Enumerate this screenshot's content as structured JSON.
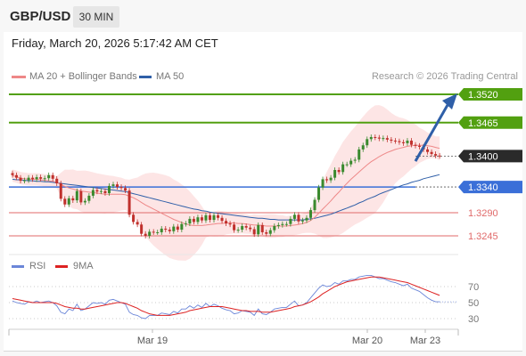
{
  "header": {
    "symbol": "GBP/USD",
    "timeframe": "30 MIN"
  },
  "timestamp": "Friday, March 20, 2026 5:17:42 AM CET",
  "legend": {
    "ma20": "MA 20 + Bollinger Bands",
    "ma50": "MA 50",
    "rsi": "RSI",
    "ma9": "9MA"
  },
  "credit": "Research © 2026 Trading Central",
  "colors": {
    "ma20": "#ee8888",
    "ma50": "#2f5fa8",
    "bollinger_fill": "#fde0e0",
    "resistance": "#52a010",
    "pivot": "#3a6fd8",
    "support": "#e06a6a",
    "last_price": "#2a2a2a",
    "candle_up": "#3a8a2e",
    "candle_down": "#c0302c",
    "rsi": "#6b86d8",
    "rsi_ma": "#dd2222"
  },
  "chart_data": [
    {
      "type": "candlestick",
      "symbol": "GBP/USD",
      "interval": "30 MIN",
      "x_ticks": [
        "Mar 19",
        "Mar 20",
        "Mar 23"
      ],
      "levels": [
        {
          "value": 1.352,
          "label": "1.3520",
          "kind": "resistance"
        },
        {
          "value": 1.3465,
          "label": "1.3465",
          "kind": "resistance"
        },
        {
          "value": 1.34,
          "label": "1.3400",
          "kind": "last"
        },
        {
          "value": 1.334,
          "label": "1.3340",
          "kind": "pivot"
        },
        {
          "value": 1.329,
          "label": "1.3290",
          "kind": "support"
        },
        {
          "value": 1.3245,
          "label": "1.3245",
          "kind": "support"
        }
      ],
      "projection": {
        "from": 1.339,
        "to": 1.352,
        "direction": "up"
      },
      "close": [
        1.3363,
        1.3358,
        1.3352,
        1.3353,
        1.3358,
        1.3355,
        1.3359,
        1.3356,
        1.3357,
        1.3363,
        1.3356,
        1.3347,
        1.3317,
        1.3306,
        1.3318,
        1.3314,
        1.3332,
        1.331,
        1.3313,
        1.3323,
        1.3334,
        1.3331,
        1.3332,
        1.3328,
        1.3342,
        1.3345,
        1.334,
        1.3338,
        1.3333,
        1.3286,
        1.3272,
        1.3267,
        1.3249,
        1.3245,
        1.3253,
        1.3252,
        1.3252,
        1.3259,
        1.3257,
        1.3254,
        1.3263,
        1.3257,
        1.3268,
        1.3269,
        1.3278,
        1.3272,
        1.3281,
        1.3275,
        1.3285,
        1.3276,
        1.3285,
        1.328,
        1.3274,
        1.3269,
        1.3267,
        1.3256,
        1.3257,
        1.3264,
        1.3261,
        1.3258,
        1.3248,
        1.3266,
        1.3252,
        1.3249,
        1.3256,
        1.3264,
        1.3266,
        1.3268,
        1.3268,
        1.3278,
        1.3286,
        1.3273,
        1.3275,
        1.328,
        1.3295,
        1.3315,
        1.3339,
        1.3355,
        1.3353,
        1.3358,
        1.3373,
        1.3369,
        1.3384,
        1.3384,
        1.3391,
        1.3393,
        1.3413,
        1.3421,
        1.3433,
        1.3437,
        1.3436,
        1.3434,
        1.3435,
        1.3432,
        1.343,
        1.3429,
        1.3427,
        1.3425,
        1.343,
        1.3422,
        1.342,
        1.3418,
        1.3413,
        1.3408,
        1.3404,
        1.3401,
        1.34
      ],
      "ma20": [
        1.3362,
        1.336,
        1.3357,
        1.3356,
        1.3355,
        1.3355,
        1.3355,
        1.3354,
        1.3353,
        1.3352,
        1.3351,
        1.3349,
        1.3345,
        1.3341,
        1.3338,
        1.3336,
        1.3334,
        1.3332,
        1.3331,
        1.333,
        1.3329,
        1.3328,
        1.3327,
        1.3326,
        1.3326,
        1.3326,
        1.3326,
        1.3326,
        1.3325,
        1.3322,
        1.3319,
        1.3315,
        1.331,
        1.3305,
        1.3301,
        1.3297,
        1.3293,
        1.3289,
        1.3285,
        1.3281,
        1.3277,
        1.3274,
        1.3271,
        1.3268,
        1.3266,
        1.3265,
        1.3265,
        1.3265,
        1.3266,
        1.3267,
        1.3268,
        1.3269,
        1.3269,
        1.327,
        1.327,
        1.327,
        1.3269,
        1.3269,
        1.3268,
        1.3267,
        1.3266,
        1.3266,
        1.3265,
        1.3264,
        1.3264,
        1.3264,
        1.3264,
        1.3264,
        1.3264,
        1.3265,
        1.3266,
        1.3267,
        1.3269,
        1.3271,
        1.3275,
        1.3281,
        1.3289,
        1.3297,
        1.3305,
        1.3313,
        1.3322,
        1.333,
        1.3339,
        1.3347,
        1.3355,
        1.3362,
        1.3369,
        1.3376,
        1.3383,
        1.3389,
        1.3394,
        1.3399,
        1.3403,
        1.3407,
        1.341,
        1.3413,
        1.3415,
        1.3417,
        1.3419,
        1.342,
        1.3421,
        1.3421,
        1.3421,
        1.342,
        1.3419,
        1.3417,
        1.3415
      ],
      "ma50": [
        1.3355,
        1.3354,
        1.3354,
        1.3353,
        1.3352,
        1.3352,
        1.3351,
        1.3351,
        1.335,
        1.335,
        1.3349,
        1.3348,
        1.3347,
        1.3346,
        1.3345,
        1.3344,
        1.3343,
        1.3342,
        1.3341,
        1.334,
        1.3339,
        1.3338,
        1.3337,
        1.3336,
        1.3335,
        1.3334,
        1.3333,
        1.3332,
        1.3331,
        1.3329,
        1.3327,
        1.3325,
        1.3323,
        1.3321,
        1.3319,
        1.3317,
        1.3315,
        1.3313,
        1.3311,
        1.3309,
        1.3307,
        1.3305,
        1.3303,
        1.3301,
        1.3299,
        1.3297,
        1.3296,
        1.3294,
        1.3293,
        1.3291,
        1.329,
        1.3289,
        1.3288,
        1.3287,
        1.3286,
        1.3285,
        1.3284,
        1.3283,
        1.3282,
        1.3281,
        1.328,
        1.3279,
        1.3279,
        1.3278,
        1.3277,
        1.3277,
        1.3276,
        1.3276,
        1.3276,
        1.3276,
        1.3276,
        1.3276,
        1.3276,
        1.3277,
        1.3278,
        1.3279,
        1.3281,
        1.3283,
        1.3285,
        1.3287,
        1.329,
        1.3293,
        1.3296,
        1.3299,
        1.3302,
        1.3305,
        1.3309,
        1.3312,
        1.3316,
        1.3319,
        1.3322,
        1.3326,
        1.3329,
        1.3332,
        1.3335,
        1.3338,
        1.3341,
        1.3344,
        1.3346,
        1.3349,
        1.3351,
        1.3353,
        1.3356,
        1.3358,
        1.336,
        1.3362,
        1.3364
      ]
    },
    {
      "type": "line",
      "series": [
        {
          "name": "RSI",
          "values": [
            52,
            50,
            49,
            48,
            51,
            50,
            52,
            50,
            51,
            52,
            50,
            46,
            38,
            36,
            42,
            40,
            48,
            40,
            42,
            46,
            50,
            49,
            50,
            48,
            53,
            54,
            52,
            50,
            48,
            38,
            35,
            34,
            31,
            30,
            34,
            34,
            34,
            37,
            36,
            35,
            39,
            37,
            42,
            42,
            46,
            43,
            47,
            44,
            49,
            45,
            48,
            46,
            43,
            41,
            40,
            36,
            37,
            40,
            39,
            38,
            34,
            42,
            36,
            35,
            38,
            42,
            43,
            44,
            44,
            48,
            52,
            46,
            47,
            50,
            56,
            62,
            68,
            72,
            70,
            71,
            75,
            73,
            77,
            77,
            79,
            79,
            82,
            83,
            84,
            84,
            82,
            80,
            80,
            78,
            76,
            75,
            73,
            71,
            73,
            68,
            66,
            64,
            60,
            56,
            53,
            51,
            51
          ]
        },
        {
          "name": "9MA",
          "values": [
            55,
            54,
            53,
            52,
            51,
            50,
            50,
            50,
            50,
            50,
            50,
            49,
            47,
            45,
            44,
            43,
            43,
            42,
            42,
            43,
            44,
            45,
            46,
            47,
            48,
            49,
            50,
            50,
            49,
            47,
            45,
            43,
            40,
            38,
            36,
            35,
            34,
            34,
            34,
            34,
            35,
            36,
            37,
            38,
            40,
            41,
            42,
            43,
            44,
            45,
            45,
            45,
            45,
            44,
            43,
            42,
            41,
            40,
            40,
            39,
            39,
            39,
            38,
            38,
            38,
            39,
            40,
            41,
            42,
            43,
            45,
            46,
            47,
            49,
            51,
            54,
            57,
            61,
            64,
            67,
            70,
            72,
            74,
            76,
            77,
            78,
            79,
            80,
            81,
            82,
            82,
            82,
            81,
            80,
            79,
            78,
            77,
            76,
            75,
            73,
            71,
            69,
            67,
            65,
            63,
            61,
            59
          ]
        }
      ],
      "y_ticks": [
        70,
        50,
        30
      ]
    }
  ]
}
